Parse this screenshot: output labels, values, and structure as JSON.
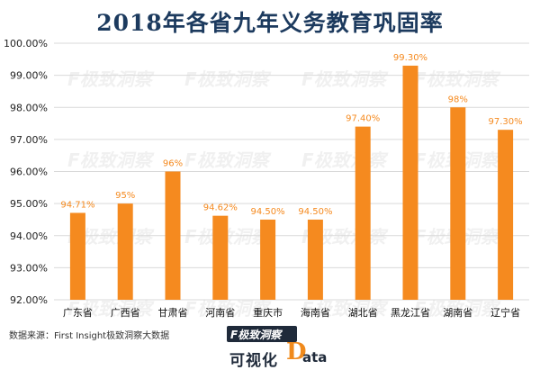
{
  "chart_data": {
    "type": "bar",
    "title": "2018年各省九年义务教育巩固率",
    "categories": [
      "广东省",
      "广西省",
      "甘肃省",
      "河南省",
      "重庆市",
      "海南省",
      "湖北省",
      "黑龙江省",
      "湖南省",
      "辽宁省"
    ],
    "values": [
      94.71,
      95,
      96,
      94.62,
      94.5,
      94.5,
      97.4,
      99.3,
      98,
      97.3
    ],
    "data_labels": [
      "94.71%",
      "95%",
      "96%",
      "94.62%",
      "94.50%",
      "94.50%",
      "97.40%",
      "99.30%",
      "98%",
      "97.30%"
    ],
    "ylim": [
      92,
      100
    ],
    "y_ticks": [
      "92.00%",
      "93.00%",
      "94.00%",
      "95.00%",
      "96.00%",
      "97.00%",
      "98.00%",
      "99.00%",
      "100.00%"
    ],
    "grid": "horizontal",
    "bar_color": "#f58a1f",
    "label_color": "#f58a1f",
    "xlabel": "",
    "ylabel": ""
  },
  "source": "数据来源：First Insight极致洞察大数据",
  "watermark": "F极致洞察 First Insight",
  "brand": {
    "logo": "F极致洞察",
    "text": "可视化",
    "data_d": "D",
    "data_rest": "ata"
  }
}
